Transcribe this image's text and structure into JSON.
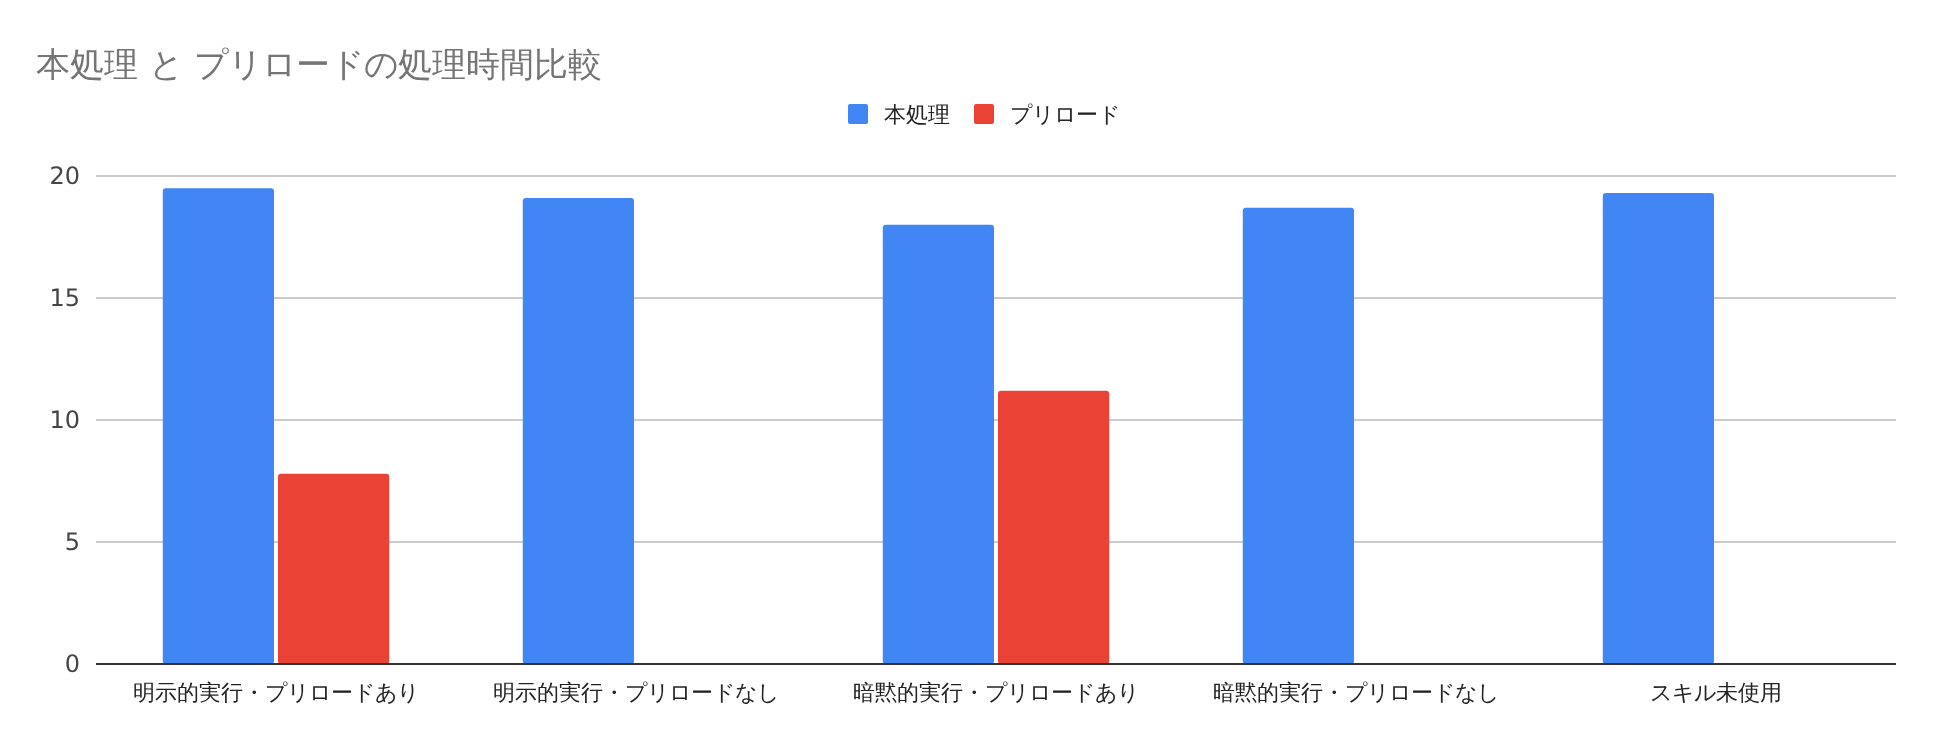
{
  "chart_data": {
    "type": "bar",
    "title": "本処理 と プリロードの処理時間比較",
    "categories": [
      "明示的実行・プリロードあり",
      "明示的実行・プリロードなし",
      "暗黙的実行・プリロードあり",
      "暗黙的実行・プリロードなし",
      "スキル未使用"
    ],
    "series": [
      {
        "name": "本処理",
        "color": "#4285f4",
        "values": [
          19.5,
          19.1,
          18.0,
          18.7,
          19.3
        ]
      },
      {
        "name": "プリロード",
        "color": "#ea4335",
        "values": [
          7.8,
          null,
          11.2,
          null,
          null
        ]
      }
    ],
    "ylim": [
      0,
      20
    ],
    "yticks": [
      0,
      5,
      10,
      15,
      20
    ],
    "grid": "y",
    "legend": "top"
  }
}
